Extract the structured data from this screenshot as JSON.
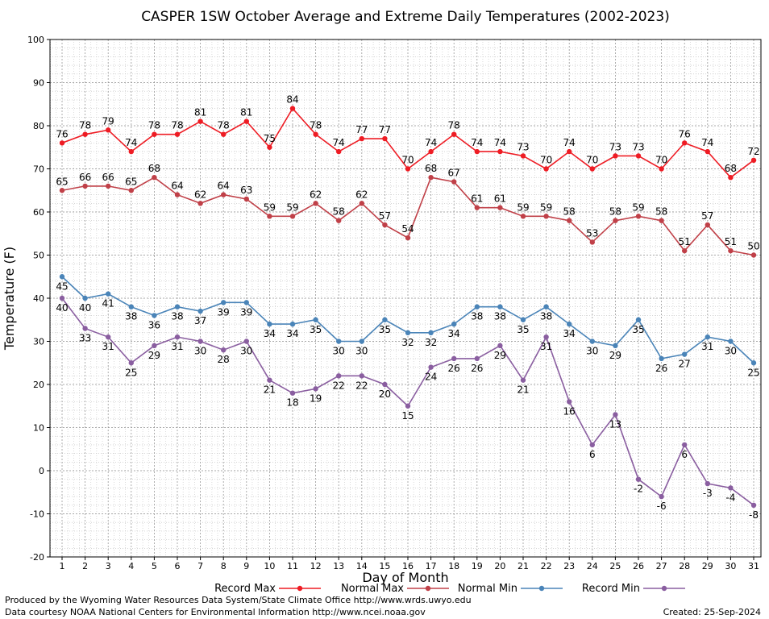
{
  "chart_data": {
    "type": "line",
    "title": "CASPER 1SW October Average and Extreme Daily Temperatures (2002-2023)",
    "xlabel": "Day of Month",
    "ylabel": "Temperature (F)",
    "ylim": [
      -20,
      100
    ],
    "yticks": [
      -20,
      -10,
      0,
      10,
      20,
      30,
      40,
      50,
      60,
      70,
      80,
      90,
      100
    ],
    "grid": true,
    "legend_position": "bottom",
    "x": [
      1,
      2,
      3,
      4,
      5,
      6,
      7,
      8,
      9,
      10,
      11,
      12,
      13,
      14,
      15,
      16,
      17,
      18,
      19,
      20,
      21,
      22,
      23,
      24,
      25,
      26,
      27,
      28,
      29,
      30,
      31
    ],
    "series": [
      {
        "name": "Record Max",
        "color": "#ee1c24",
        "values": [
          76,
          78,
          79,
          74,
          78,
          78,
          81,
          78,
          81,
          75,
          84,
          78,
          74,
          77,
          77,
          70,
          74,
          78,
          74,
          74,
          73,
          70,
          74,
          70,
          73,
          73,
          70,
          76,
          74,
          68,
          72
        ]
      },
      {
        "name": "Normal Max",
        "color": "#c04048",
        "values": [
          65,
          66,
          66,
          65,
          68,
          64,
          62,
          64,
          63,
          59,
          59,
          62,
          58,
          62,
          57,
          54,
          68,
          67,
          61,
          61,
          59,
          59,
          58,
          53,
          58,
          59,
          58,
          51,
          57,
          51,
          50
        ]
      },
      {
        "name": "Normal Min",
        "color": "#4a84b8",
        "values": [
          45,
          40,
          41,
          38,
          36,
          38,
          37,
          39,
          39,
          34,
          34,
          35,
          30,
          30,
          35,
          32,
          32,
          34,
          38,
          38,
          35,
          38,
          34,
          30,
          29,
          35,
          26,
          27,
          31,
          30,
          25
        ]
      },
      {
        "name": "Record Min",
        "color": "#8a5ea0",
        "values": [
          40,
          33,
          31,
          25,
          29,
          31,
          30,
          28,
          30,
          21,
          18,
          19,
          22,
          22,
          20,
          15,
          24,
          26,
          26,
          29,
          21,
          31,
          16,
          6,
          13,
          -2,
          -6,
          6,
          -3,
          -4,
          -8
        ]
      }
    ]
  },
  "footer": {
    "line1": "Produced by the Wyoming Water Resources Data System/State Climate Office http://www.wrds.uwyo.edu",
    "line2": "Data courtesy NOAA National Centers for Environmental Information http://www.ncei.noaa.gov",
    "created": "Created:  25-Sep-2024"
  }
}
